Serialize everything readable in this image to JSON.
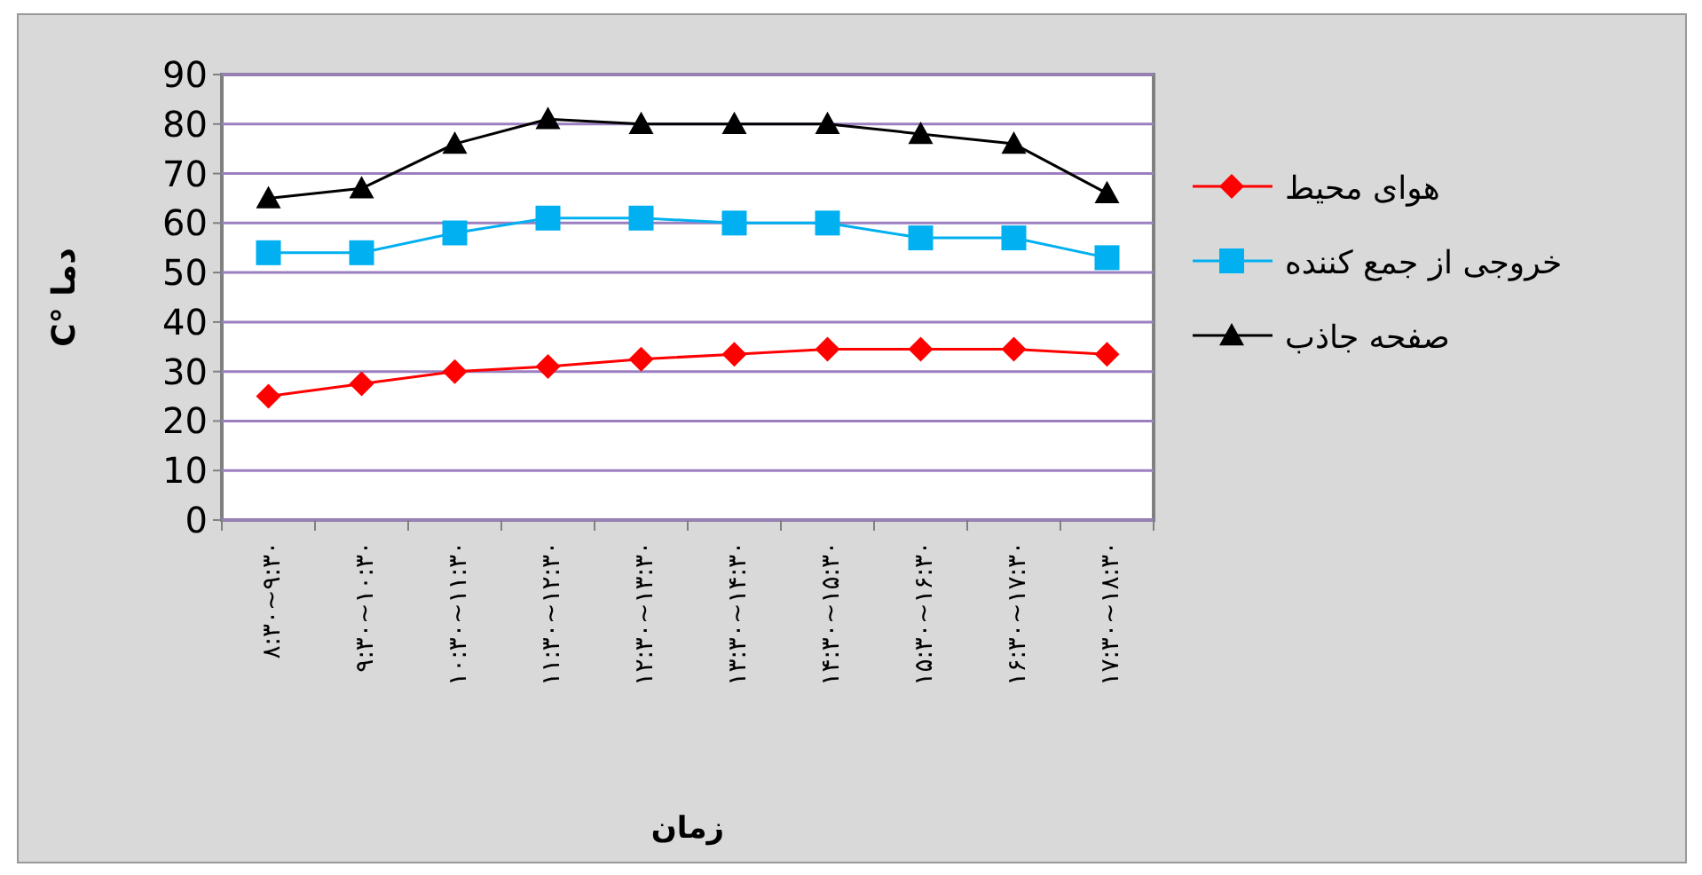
{
  "chart_data": {
    "type": "line",
    "xlabel": "زمان",
    "ylabel": "دما °C",
    "categories": [
      "۸:۳۰~۹:۳۰",
      "۹:۳۰~۱۰:۳۰",
      "۱۰:۳۰~۱۱:۳۰",
      "۱۱:۳۰~۱۲:۳۰",
      "۱۲:۳۰~۱۳:۳۰",
      "۱۳:۳۰~۱۴:۳۰",
      "۱۴:۳۰~۱۵:۳۰",
      "۱۵:۳۰~۱۶:۳۰",
      "۱۶:۳۰~۱۷:۳۰",
      "۱۷:۳۰~۱۸:۳۰"
    ],
    "series": [
      {
        "name": "هوای محیط",
        "color": "#ff0000",
        "marker": "diamond",
        "values": [
          25,
          27.5,
          30,
          31,
          32.5,
          33.5,
          34.5,
          34.5,
          34.5,
          33.5
        ]
      },
      {
        "name": "خروجی از جمع کننده",
        "color": "#00b0f0",
        "marker": "square",
        "values": [
          54,
          54,
          58,
          61,
          61,
          60,
          60,
          57,
          57,
          53
        ]
      },
      {
        "name": "صفحه جاذب",
        "color": "#000000",
        "marker": "triangle",
        "values": [
          65,
          67,
          76,
          81,
          80,
          80,
          80,
          78,
          76,
          66
        ]
      }
    ],
    "ylim": [
      0,
      90
    ],
    "yticks": [
      0,
      10,
      20,
      30,
      40,
      50,
      60,
      70,
      80,
      90
    ],
    "grid": "y",
    "legend": "right",
    "line_style": "solid"
  }
}
